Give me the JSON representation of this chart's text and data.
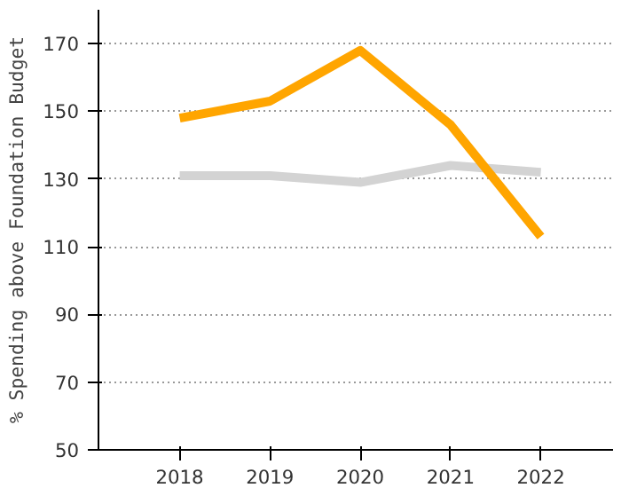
{
  "chart_data": {
    "type": "line",
    "ylabel": "% Spending above Foundation Budget",
    "x": [
      2018,
      2019,
      2020,
      2021,
      2022
    ],
    "xlim": [
      2017.1,
      2022.8
    ],
    "xticks": [
      2018,
      2019,
      2020,
      2021,
      2022
    ],
    "ylim": [
      50,
      180
    ],
    "yticks": [
      50,
      70,
      90,
      110,
      130,
      150,
      170
    ],
    "grid": "y",
    "line_style": "solid",
    "series": [
      {
        "color": "#d3d3d3",
        "values": [
          131,
          131,
          129,
          134,
          132
        ]
      },
      {
        "color": "#ffa500",
        "values": [
          148,
          153,
          168,
          146,
          113
        ]
      }
    ]
  }
}
